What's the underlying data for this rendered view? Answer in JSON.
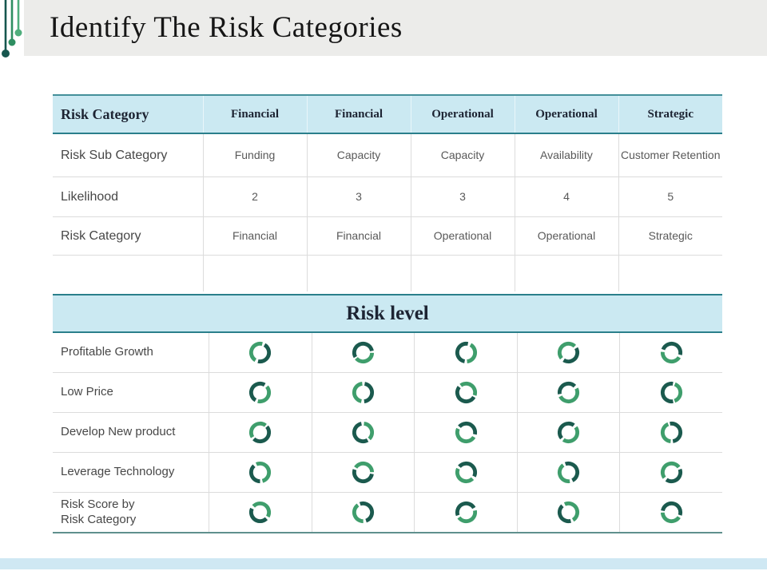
{
  "title": "Identify The Risk Categories",
  "colors": {
    "title_band_bg": "#ececea",
    "table_header_bg": "#cbe9f2",
    "teal_border": "#2a7f8b",
    "table_bottom_border": "#5f908d",
    "donut_dark": "#1b5a4e",
    "donut_green": "#3f9e6c",
    "ornament_dark": "#16564e",
    "ornament_mid": "#2e8e61",
    "ornament_light": "#4fae7c",
    "footer_bar": "#cfe8f3"
  },
  "matrix_table": {
    "header": {
      "label": "Risk Category",
      "columns": [
        "Financial",
        "Financial",
        "Operational",
        "Operational",
        "Strategic"
      ]
    },
    "rows": [
      {
        "label": "Risk Sub Category",
        "values": [
          "Funding",
          "Capacity",
          "Capacity",
          "Availability",
          "Customer Retention"
        ]
      },
      {
        "label": "Likelihood",
        "values": [
          "2",
          "3",
          "3",
          "4",
          "5"
        ]
      },
      {
        "label": "Risk Category",
        "values": [
          "Financial",
          "Financial",
          "Operational",
          "Operational",
          "Strategic"
        ]
      },
      {
        "label": "",
        "values": [
          "",
          "",
          "",
          "",
          ""
        ]
      }
    ]
  },
  "risk_level_table": {
    "title": "Risk level",
    "rows": [
      {
        "label": "Profitable Growth",
        "donuts": [
          {
            "rotation": -60,
            "dark": 0.45,
            "green": 0.45
          },
          {
            "rotation": 150,
            "dark": 0.55,
            "green": 0.38
          },
          {
            "rotation": 100,
            "dark": 0.5,
            "green": 0.4
          },
          {
            "rotation": -30,
            "dark": 0.42,
            "green": 0.48
          },
          {
            "rotation": 200,
            "dark": 0.48,
            "green": 0.42
          }
        ]
      },
      {
        "label": "Low Price",
        "donuts": [
          {
            "rotation": 120,
            "dark": 0.5,
            "green": 0.4
          },
          {
            "rotation": -80,
            "dark": 0.45,
            "green": 0.45
          },
          {
            "rotation": 30,
            "dark": 0.52,
            "green": 0.4
          },
          {
            "rotation": 170,
            "dark": 0.4,
            "green": 0.5
          },
          {
            "rotation": 80,
            "dark": 0.55,
            "green": 0.38
          }
        ]
      },
      {
        "label": "Develop New product",
        "donuts": [
          {
            "rotation": -40,
            "dark": 0.48,
            "green": 0.44
          },
          {
            "rotation": 60,
            "dark": 0.55,
            "green": 0.36
          },
          {
            "rotation": 220,
            "dark": 0.42,
            "green": 0.48
          },
          {
            "rotation": 140,
            "dark": 0.46,
            "green": 0.44
          },
          {
            "rotation": -100,
            "dark": 0.5,
            "green": 0.42
          }
        ]
      },
      {
        "label": "Leverage Technology",
        "donuts": [
          {
            "rotation": 90,
            "dark": 0.38,
            "green": 0.52
          },
          {
            "rotation": 10,
            "dark": 0.52,
            "green": 0.4
          },
          {
            "rotation": -140,
            "dark": 0.46,
            "green": 0.44
          },
          {
            "rotation": 250,
            "dark": 0.48,
            "green": 0.42
          },
          {
            "rotation": -20,
            "dark": 0.4,
            "green": 0.5
          }
        ]
      },
      {
        "label": "Risk Score by\nRisk Category",
        "donuts": [
          {
            "rotation": 45,
            "dark": 0.44,
            "green": 0.46
          },
          {
            "rotation": -110,
            "dark": 0.5,
            "green": 0.4
          },
          {
            "rotation": 160,
            "dark": 0.47,
            "green": 0.43
          },
          {
            "rotation": 75,
            "dark": 0.42,
            "green": 0.48
          },
          {
            "rotation": -170,
            "dark": 0.52,
            "green": 0.4
          }
        ]
      }
    ]
  }
}
